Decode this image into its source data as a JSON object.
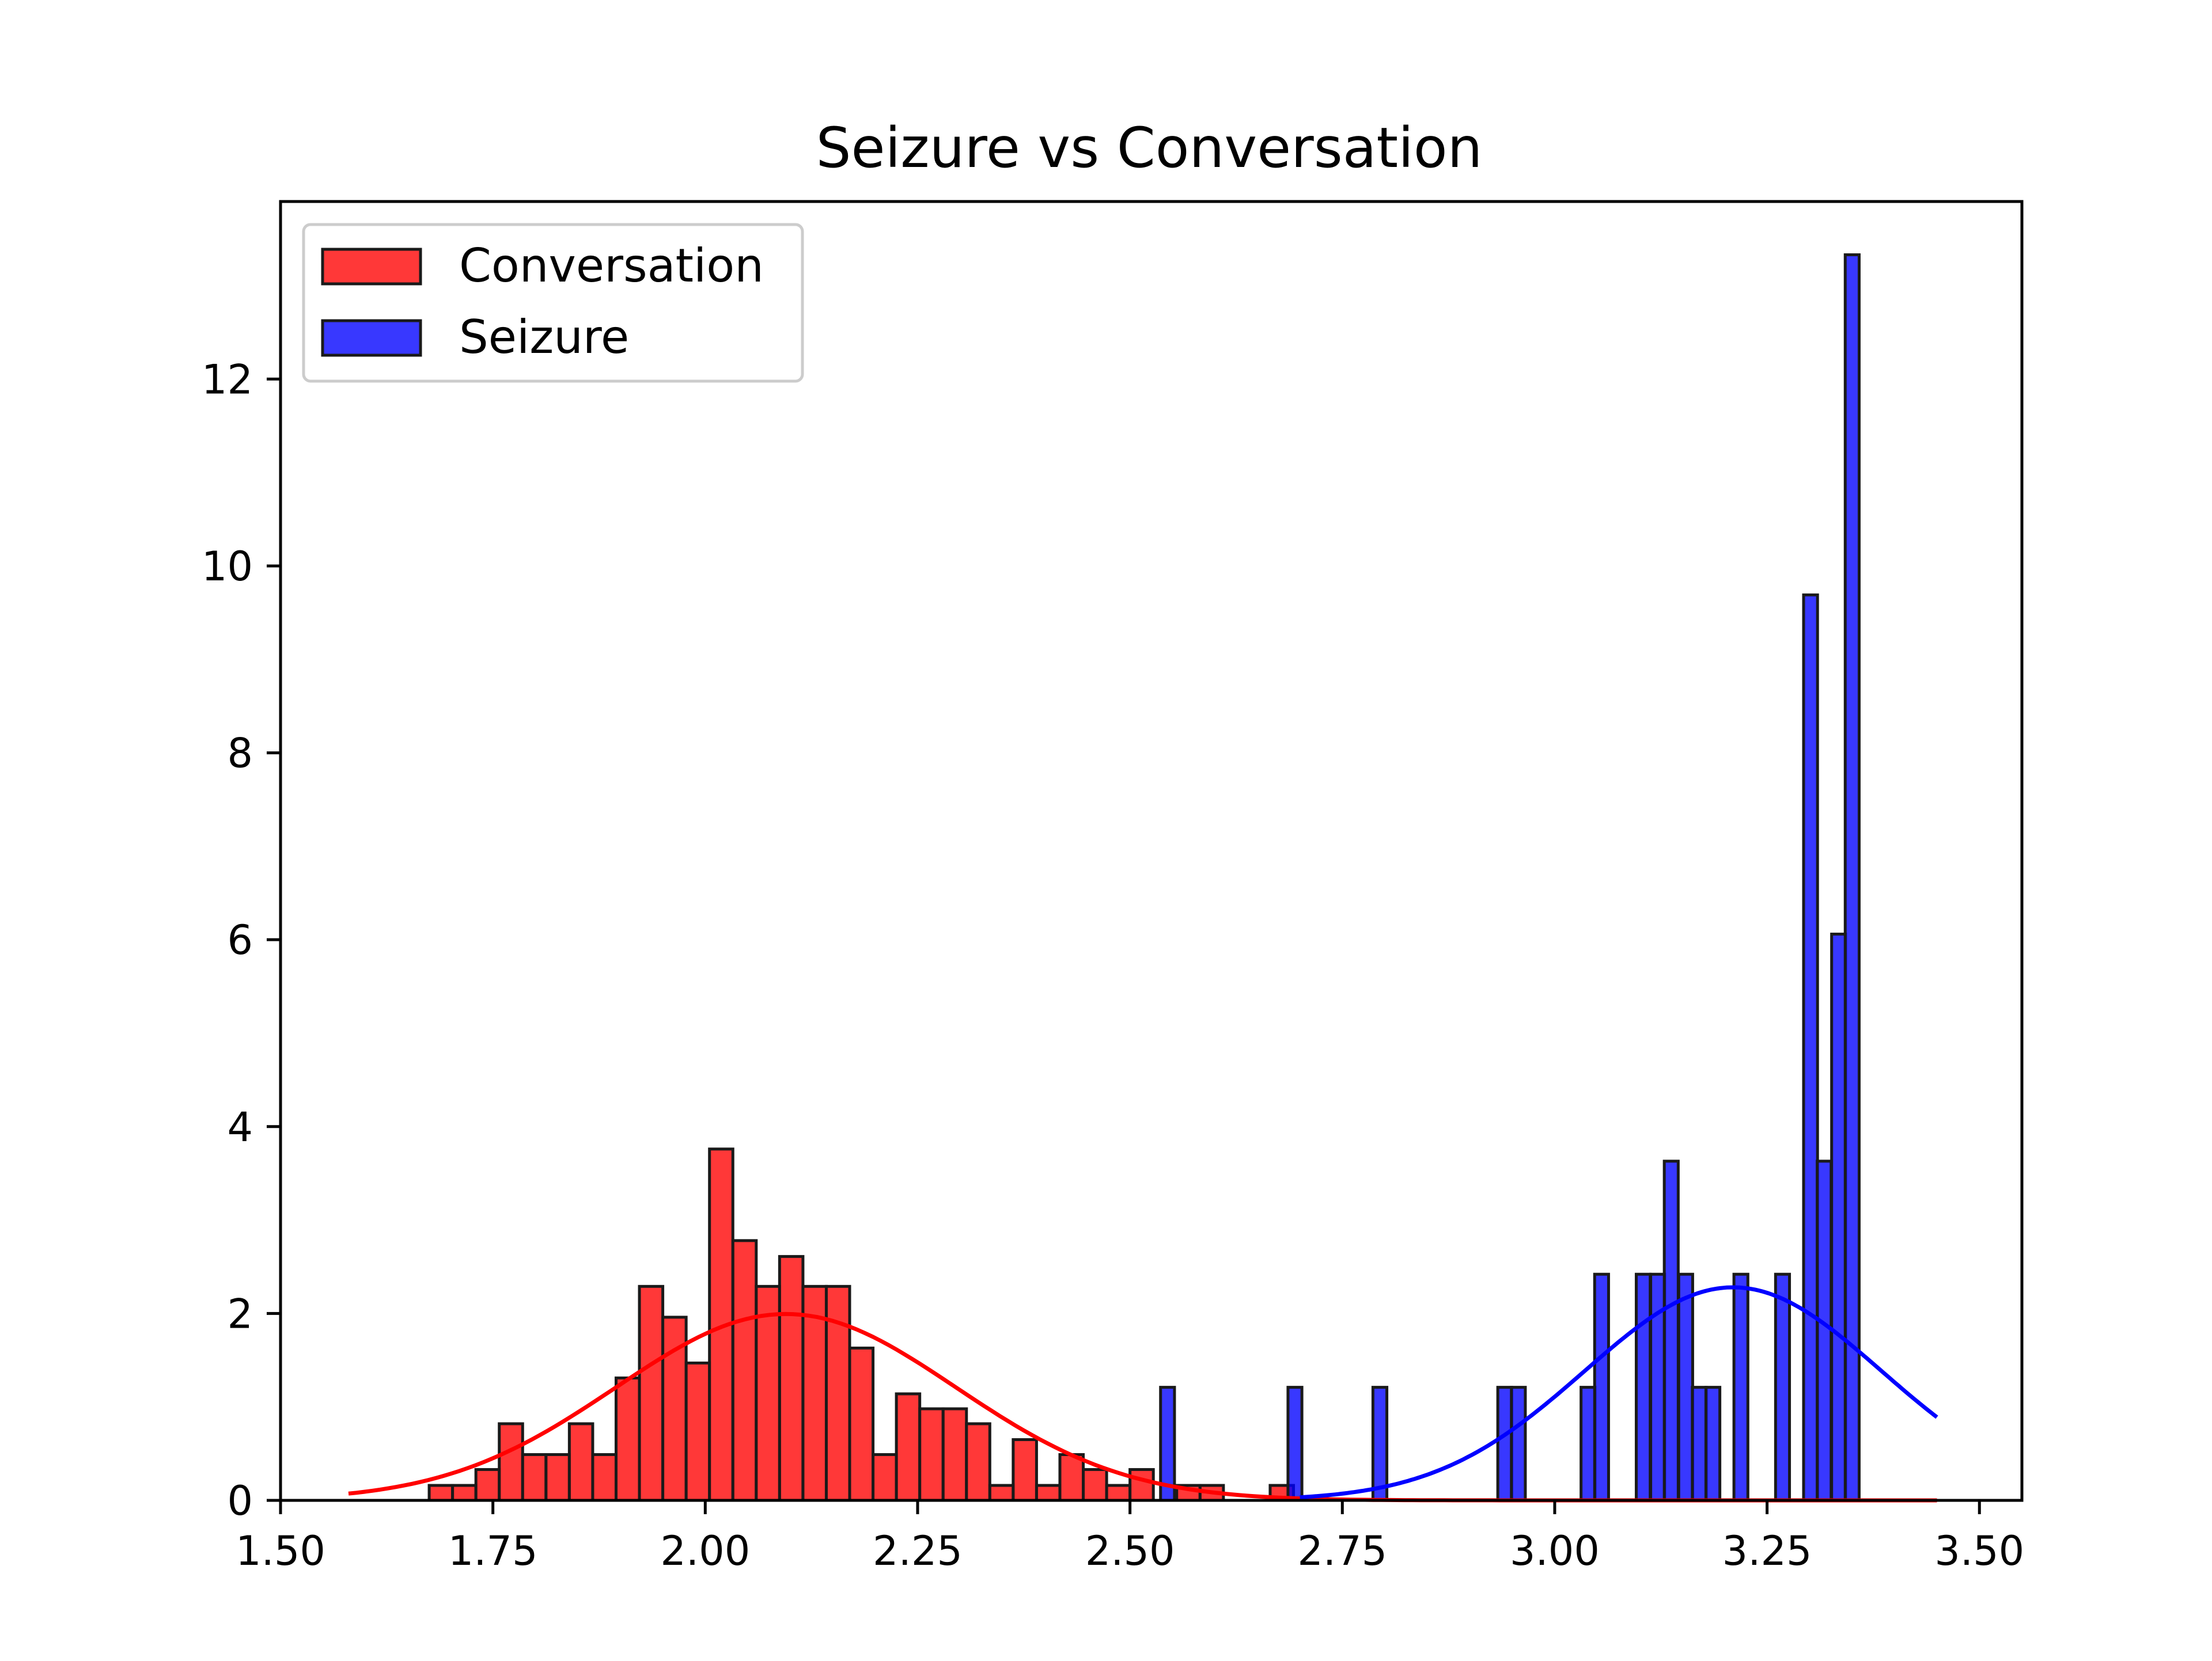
{
  "chart_data": {
    "type": "bar",
    "title": "Seizure vs Conversation",
    "xlabel": "",
    "ylabel": "",
    "xlim": [
      1.5,
      3.55
    ],
    "ylim": [
      0,
      13.9
    ],
    "x_ticks": [
      1.5,
      1.75,
      2.0,
      2.25,
      2.5,
      2.75,
      3.0,
      3.25,
      3.5
    ],
    "x_tick_labels": [
      "1.50",
      "1.75",
      "2.00",
      "2.25",
      "2.50",
      "2.75",
      "3.00",
      "3.25",
      "3.50"
    ],
    "y_ticks": [
      0,
      2,
      4,
      6,
      8,
      10,
      12
    ],
    "y_tick_labels": [
      "0",
      "2",
      "4",
      "6",
      "8",
      "10",
      "12"
    ],
    "grid": false,
    "legend_position": "upper-left",
    "series": [
      {
        "name": "Conversation",
        "type": "histogram",
        "color": "#ff0000",
        "bin_width": 0.0275,
        "bins_left": [
          1.675,
          1.7025,
          1.73,
          1.7575,
          1.785,
          1.8125,
          1.84,
          1.8675,
          1.895,
          1.9225,
          1.95,
          1.9775,
          2.005,
          2.0325,
          2.06,
          2.0875,
          2.115,
          2.1425,
          2.17,
          2.1975,
          2.225,
          2.2525,
          2.28,
          2.3075,
          2.335,
          2.3625,
          2.39,
          2.4175,
          2.445,
          2.4725,
          2.5,
          2.5275,
          2.555,
          2.5825,
          2.61,
          2.6375,
          2.665
        ],
        "values": [
          0.16,
          0.16,
          0.33,
          0.82,
          0.49,
          0.49,
          0.82,
          0.49,
          1.31,
          2.29,
          1.96,
          1.47,
          3.76,
          2.78,
          2.29,
          2.61,
          2.29,
          2.29,
          1.63,
          0.49,
          1.14,
          0.98,
          0.98,
          0.82,
          0.16,
          0.65,
          0.16,
          0.49,
          0.33,
          0.16,
          0.33,
          0.0,
          0.16,
          0.16,
          0.0,
          0.0,
          0.16
        ]
      },
      {
        "name": "Seizure",
        "type": "histogram",
        "color": "#0000ff",
        "bin_width": 0.0164,
        "bins": [
          [
            2.536,
            1.21
          ],
          [
            2.686,
            1.21
          ],
          [
            2.786,
            1.21
          ],
          [
            2.933,
            1.21
          ],
          [
            2.949,
            1.21
          ],
          [
            3.031,
            1.21
          ],
          [
            3.047,
            2.42
          ],
          [
            3.096,
            2.42
          ],
          [
            3.113,
            2.42
          ],
          [
            3.129,
            3.63
          ],
          [
            3.146,
            2.42
          ],
          [
            3.162,
            1.21
          ],
          [
            3.178,
            1.21
          ],
          [
            3.211,
            2.42
          ],
          [
            3.26,
            2.42
          ],
          [
            3.293,
            9.69
          ],
          [
            3.309,
            3.63
          ],
          [
            3.326,
            6.06
          ],
          [
            3.342,
            13.33
          ]
        ]
      }
    ],
    "fit_curves": [
      {
        "series": "Conversation",
        "color": "#ff0000",
        "mean": 2.095,
        "std": 0.2,
        "x_range": [
          1.58,
          3.45
        ]
      },
      {
        "series": "Seizure",
        "color": "#0000ff",
        "mean": 3.21,
        "std": 0.175,
        "x_range": [
          2.7,
          3.45
        ]
      }
    ]
  }
}
